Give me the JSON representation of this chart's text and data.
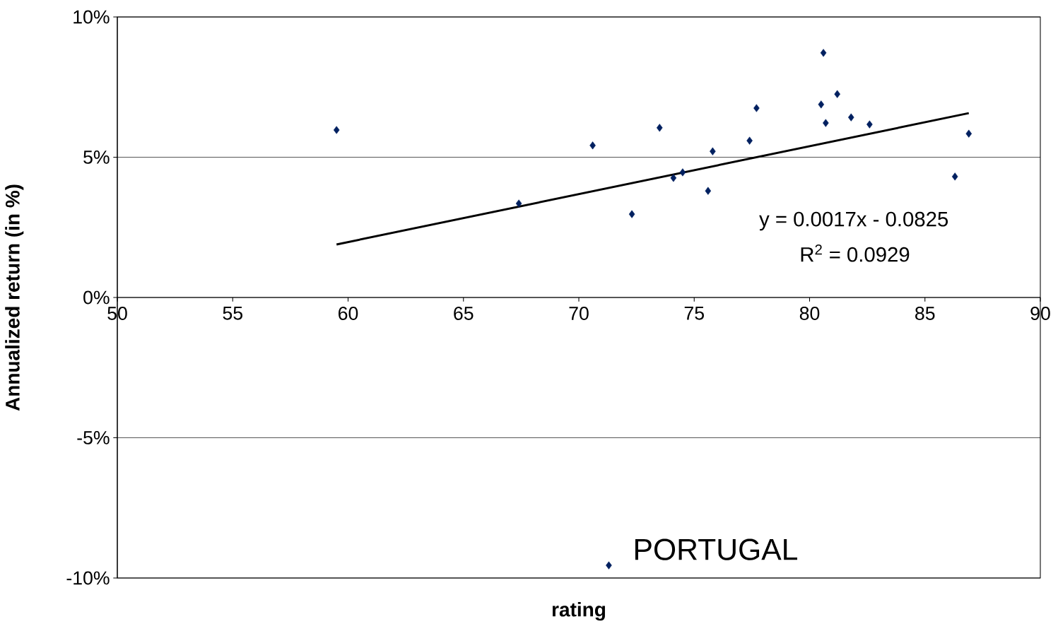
{
  "chart_data": {
    "type": "scatter",
    "xlabel": "rating",
    "ylabel": "Annualized return (in %)",
    "xlim": [
      50,
      90
    ],
    "ylim": [
      -10,
      10
    ],
    "xticks": [
      50,
      55,
      60,
      65,
      70,
      75,
      80,
      85,
      90
    ],
    "yticks": [
      {
        "value": -10,
        "label": "-10%"
      },
      {
        "value": -5,
        "label": "-5%"
      },
      {
        "value": 0,
        "label": "0%"
      },
      {
        "value": 5,
        "label": "5%"
      },
      {
        "value": 10,
        "label": "10%"
      }
    ],
    "grid": "y",
    "series": [
      {
        "marker": "diamond",
        "color": "#002060",
        "x": [
          59.5,
          67.4,
          70.6,
          72.3,
          73.5,
          74.1,
          74.5,
          75.6,
          75.8,
          77.4,
          77.7,
          80.5,
          80.6,
          80.7,
          81.2,
          81.8,
          82.6,
          86.3,
          86.9,
          71.3
        ],
        "values": [
          5.97,
          3.35,
          5.42,
          2.97,
          6.05,
          4.26,
          4.46,
          3.8,
          5.21,
          5.59,
          6.75,
          6.88,
          8.72,
          6.22,
          7.25,
          6.42,
          6.17,
          4.31,
          5.84,
          -9.55
        ]
      },
      {
        "type": "line",
        "marker": "none",
        "color": "#000000",
        "x": [
          59.5,
          86.9
        ],
        "values": [
          1.89,
          6.57
        ]
      }
    ],
    "annotations": [
      "y = 0.0017x - 0.0825",
      "R$^{2}$ = 0.0929",
      {
        "text": "PORTUGAL",
        "x": 71.3,
        "y": -9.55
      }
    ]
  }
}
